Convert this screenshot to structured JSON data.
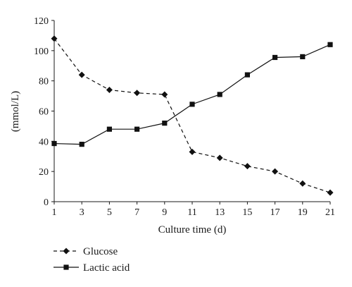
{
  "chart_data": {
    "type": "line",
    "title": "",
    "xlabel": "Culture time (d)",
    "ylabel": "(mmol/L)",
    "x": [
      1,
      3,
      5,
      7,
      9,
      11,
      13,
      15,
      17,
      19,
      21
    ],
    "xlim": [
      1,
      21
    ],
    "ylim": [
      0,
      120
    ],
    "xticks": [
      1,
      3,
      5,
      7,
      9,
      11,
      13,
      15,
      17,
      19,
      21
    ],
    "yticks": [
      0,
      20,
      40,
      60,
      80,
      100,
      120
    ],
    "grid": false,
    "legend_position": "bottom-left",
    "series": [
      {
        "name": "Glucose",
        "marker": "diamond",
        "line_style": "dashed",
        "color": "#111111",
        "values": [
          108,
          84,
          74,
          72,
          71,
          33,
          29,
          23.5,
          20,
          12,
          6
        ]
      },
      {
        "name": "Lactic acid",
        "marker": "square",
        "line_style": "solid",
        "color": "#111111",
        "values": [
          38.5,
          38,
          48,
          48,
          52,
          64.5,
          71,
          84,
          95.5,
          96,
          104
        ]
      }
    ]
  }
}
